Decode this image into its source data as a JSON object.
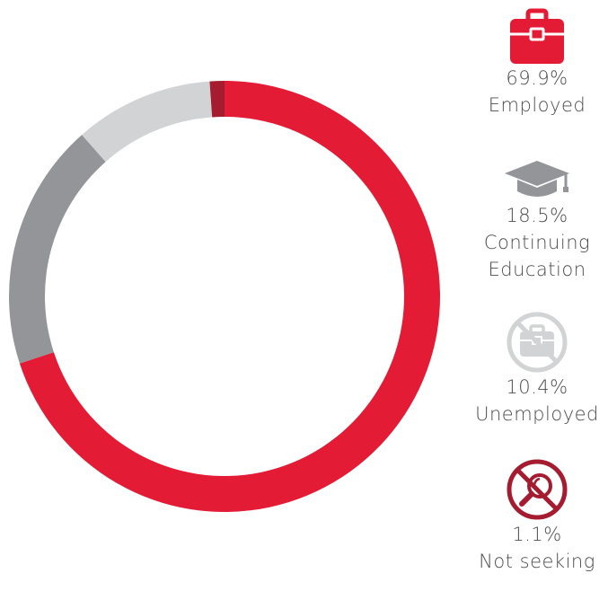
{
  "chart_data": {
    "type": "pie",
    "categories": [
      "Employed",
      "Continuing Education",
      "Unemployed",
      "Not seeking"
    ],
    "values": [
      69.9,
      18.5,
      10.4,
      1.1
    ],
    "value_labels": [
      "69.9%",
      "18.5%",
      "10.4%",
      "1.1%"
    ],
    "colors": [
      "#e31b35",
      "#939598",
      "#d1d3d4",
      "#a51c30"
    ],
    "donut": true,
    "legend_position": "right"
  },
  "legend": [
    {
      "value": "69.9%",
      "label": "Employed",
      "icon": "briefcase-icon",
      "color": "#e31b35"
    },
    {
      "value": "18.5%",
      "label_line1": "Continuing",
      "label_line2": "Education",
      "icon": "graduation-cap-icon",
      "color": "#939598"
    },
    {
      "value": "10.4%",
      "label": "Unemployed",
      "icon": "no-briefcase-icon",
      "color": "#d1d3d4"
    },
    {
      "value": "1.1%",
      "label": "Not seeking",
      "icon": "no-search-icon",
      "color": "#a51c30"
    }
  ]
}
